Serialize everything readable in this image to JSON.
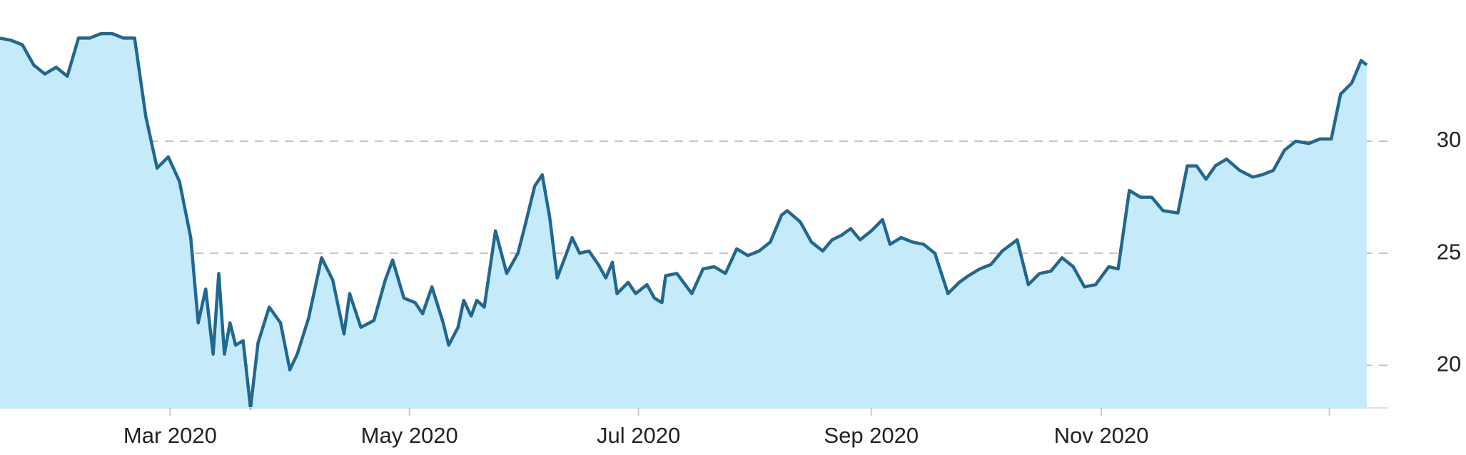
{
  "chart_data": {
    "type": "area",
    "x": [
      0,
      12,
      24,
      36,
      48,
      60,
      72,
      84,
      96,
      108,
      120,
      132,
      144,
      156,
      168,
      180,
      192,
      204,
      212,
      220,
      228,
      234,
      240,
      246,
      252,
      260,
      268,
      276,
      288,
      300,
      310,
      318,
      330,
      344,
      356,
      368,
      374,
      386,
      400,
      412,
      420,
      432,
      444,
      452,
      462,
      474,
      480,
      490,
      496,
      504,
      510,
      518,
      530,
      542,
      554,
      562,
      572,
      580,
      588,
      596,
      606,
      612,
      620,
      630,
      640,
      648,
      655,
      660,
      672,
      680,
      692,
      700,
      708,
      712,
      724,
      740,
      752,
      764,
      776,
      788,
      800,
      812,
      824,
      836,
      842,
      856,
      868,
      880,
      890,
      900,
      910,
      920,
      932,
      944,
      952,
      964,
      976,
      988,
      1000,
      1014,
      1026,
      1036,
      1048,
      1060,
      1072,
      1088,
      1100,
      1112,
      1124,
      1136,
      1148,
      1160,
      1172,
      1186,
      1196,
      1208,
      1220,
      1232,
      1244,
      1260,
      1270,
      1280,
      1290,
      1300,
      1312,
      1326,
      1340,
      1350,
      1362,
      1374,
      1386,
      1400,
      1412,
      1424,
      1434,
      1446,
      1456,
      1462
    ],
    "series": [
      {
        "color": "#1f6891",
        "fill": "#c5ebfb",
        "values": [
          34.6,
          34.5,
          34.3,
          33.4,
          33.0,
          33.3,
          32.9,
          34.6,
          34.6,
          34.8,
          34.8,
          34.6,
          34.6,
          31.1,
          28.8,
          29.3,
          28.2,
          25.7,
          21.9,
          23.4,
          20.5,
          24.1,
          20.5,
          21.9,
          20.9,
          21.1,
          18.1,
          21.0,
          22.6,
          21.9,
          19.8,
          20.5,
          22.1,
          24.8,
          23.8,
          21.4,
          23.2,
          21.7,
          22.0,
          23.8,
          24.7,
          23.0,
          22.8,
          22.3,
          23.5,
          21.9,
          20.9,
          21.7,
          22.9,
          22.2,
          22.9,
          22.6,
          26.0,
          24.1,
          25.0,
          26.3,
          28.0,
          28.5,
          26.6,
          23.9,
          25.0,
          25.7,
          25.0,
          25.1,
          24.5,
          23.9,
          24.6,
          23.2,
          23.7,
          23.2,
          23.6,
          23.0,
          22.8,
          24.0,
          24.1,
          23.2,
          24.3,
          24.4,
          24.1,
          25.2,
          24.9,
          25.1,
          25.5,
          26.7,
          26.9,
          26.4,
          25.5,
          25.1,
          25.6,
          25.8,
          26.1,
          25.6,
          26.0,
          26.5,
          25.4,
          25.7,
          25.5,
          25.4,
          25.0,
          23.2,
          23.7,
          24.0,
          24.3,
          24.5,
          25.1,
          25.6,
          23.6,
          24.1,
          24.2,
          24.8,
          24.4,
          23.5,
          23.6,
          24.4,
          24.3,
          27.8,
          27.5,
          27.5,
          26.9,
          26.8,
          28.9,
          28.9,
          28.3,
          28.9,
          29.2,
          28.7,
          28.4,
          28.5,
          28.7,
          29.6,
          30.0,
          29.9,
          30.1,
          30.1,
          32.1,
          32.6,
          33.6,
          33.4
        ]
      }
    ],
    "xlim": [
      0,
      1462
    ],
    "xticks": [
      {
        "value": 182,
        "label": "Mar 2020"
      },
      {
        "value": 438,
        "label": "May 2020"
      },
      {
        "value": 683,
        "label": "Jul 2020"
      },
      {
        "value": 932,
        "label": "Sep 2020"
      },
      {
        "value": 1178,
        "label": "Nov 2020"
      },
      {
        "value": 1422,
        "label": null
      }
    ],
    "ylim": [
      18.1,
      36.3
    ],
    "yticks": [
      20,
      25,
      30
    ],
    "grid": true
  }
}
